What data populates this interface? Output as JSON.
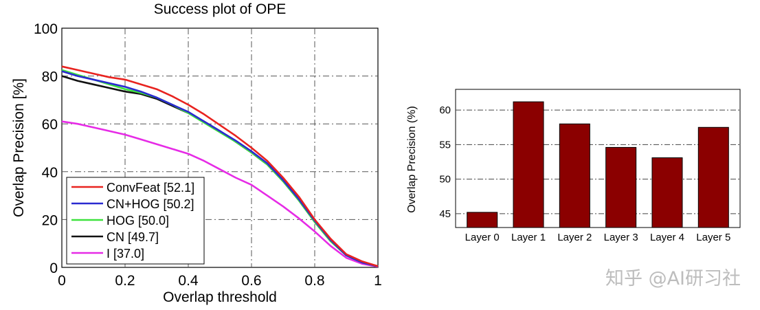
{
  "chart_data": [
    {
      "type": "line",
      "title": "Success plot of OPE",
      "xlabel": "Overlap threshold",
      "ylabel": "Overlap Precision [%]",
      "xlim": [
        0,
        1
      ],
      "ylim": [
        0,
        100
      ],
      "xticks": [
        "0",
        "0.2",
        "0.4",
        "0.6",
        "0.8",
        "1"
      ],
      "yticks": [
        "0",
        "20",
        "40",
        "60",
        "80",
        "100"
      ],
      "grid": true,
      "legend_position": "bottom-left",
      "x": [
        0,
        0.05,
        0.1,
        0.15,
        0.2,
        0.25,
        0.3,
        0.35,
        0.4,
        0.45,
        0.5,
        0.55,
        0.6,
        0.65,
        0.7,
        0.75,
        0.8,
        0.85,
        0.9,
        0.95,
        1.0
      ],
      "series": [
        {
          "name": "ConvFeat [52.1]",
          "color": "#e8231f",
          "values": [
            84,
            82.5,
            81,
            79.5,
            78.5,
            76.5,
            74.5,
            71.5,
            68,
            64,
            59.5,
            55,
            50,
            44.5,
            37.5,
            29.5,
            20,
            12,
            5.5,
            2.5,
            0.5
          ]
        },
        {
          "name": "CN+HOG [50.2]",
          "color": "#2a2ad0",
          "values": [
            82,
            80,
            78.5,
            77,
            75.5,
            73.5,
            71,
            68,
            65,
            61,
            57,
            53,
            48.5,
            43.5,
            36.5,
            28.5,
            19.5,
            11.5,
            5,
            2,
            0.5
          ]
        },
        {
          "name": "HOG [50.0]",
          "color": "#3ee23e",
          "values": [
            82.5,
            80.5,
            78.5,
            76.5,
            74.5,
            73,
            71,
            68,
            64.5,
            60.5,
            56.5,
            52.5,
            48,
            43,
            36,
            28,
            19,
            11,
            5,
            2,
            0.5
          ]
        },
        {
          "name": "CN [49.7]",
          "color": "#111111",
          "values": [
            80,
            78,
            76.5,
            75,
            73.5,
            72.5,
            70.5,
            67.5,
            64.5,
            61,
            57,
            52.5,
            48,
            43,
            36,
            28,
            19,
            11,
            5,
            2,
            0.5
          ]
        },
        {
          "name": "I [37.0]",
          "color": "#e62be6",
          "values": [
            61,
            60,
            58.5,
            57,
            55.5,
            53.5,
            51.5,
            49.5,
            47.5,
            44.5,
            41,
            37.5,
            34.5,
            30,
            25.5,
            20.5,
            15,
            9,
            4,
            1.5,
            0.3
          ]
        }
      ]
    },
    {
      "type": "bar",
      "title": "",
      "xlabel": "",
      "ylabel": "Overlap Precision (%)",
      "ylim": [
        43,
        63
      ],
      "yticks": [
        "45",
        "50",
        "55",
        "60"
      ],
      "grid": true,
      "categories": [
        "Layer 0",
        "Layer 1",
        "Layer 2",
        "Layer 3",
        "Layer 4",
        "Layer 5"
      ],
      "values": [
        45.2,
        61.2,
        58.0,
        54.6,
        53.1,
        57.5
      ],
      "color": "#8b0000"
    }
  ],
  "watermark": "知乎 @AI研习社"
}
